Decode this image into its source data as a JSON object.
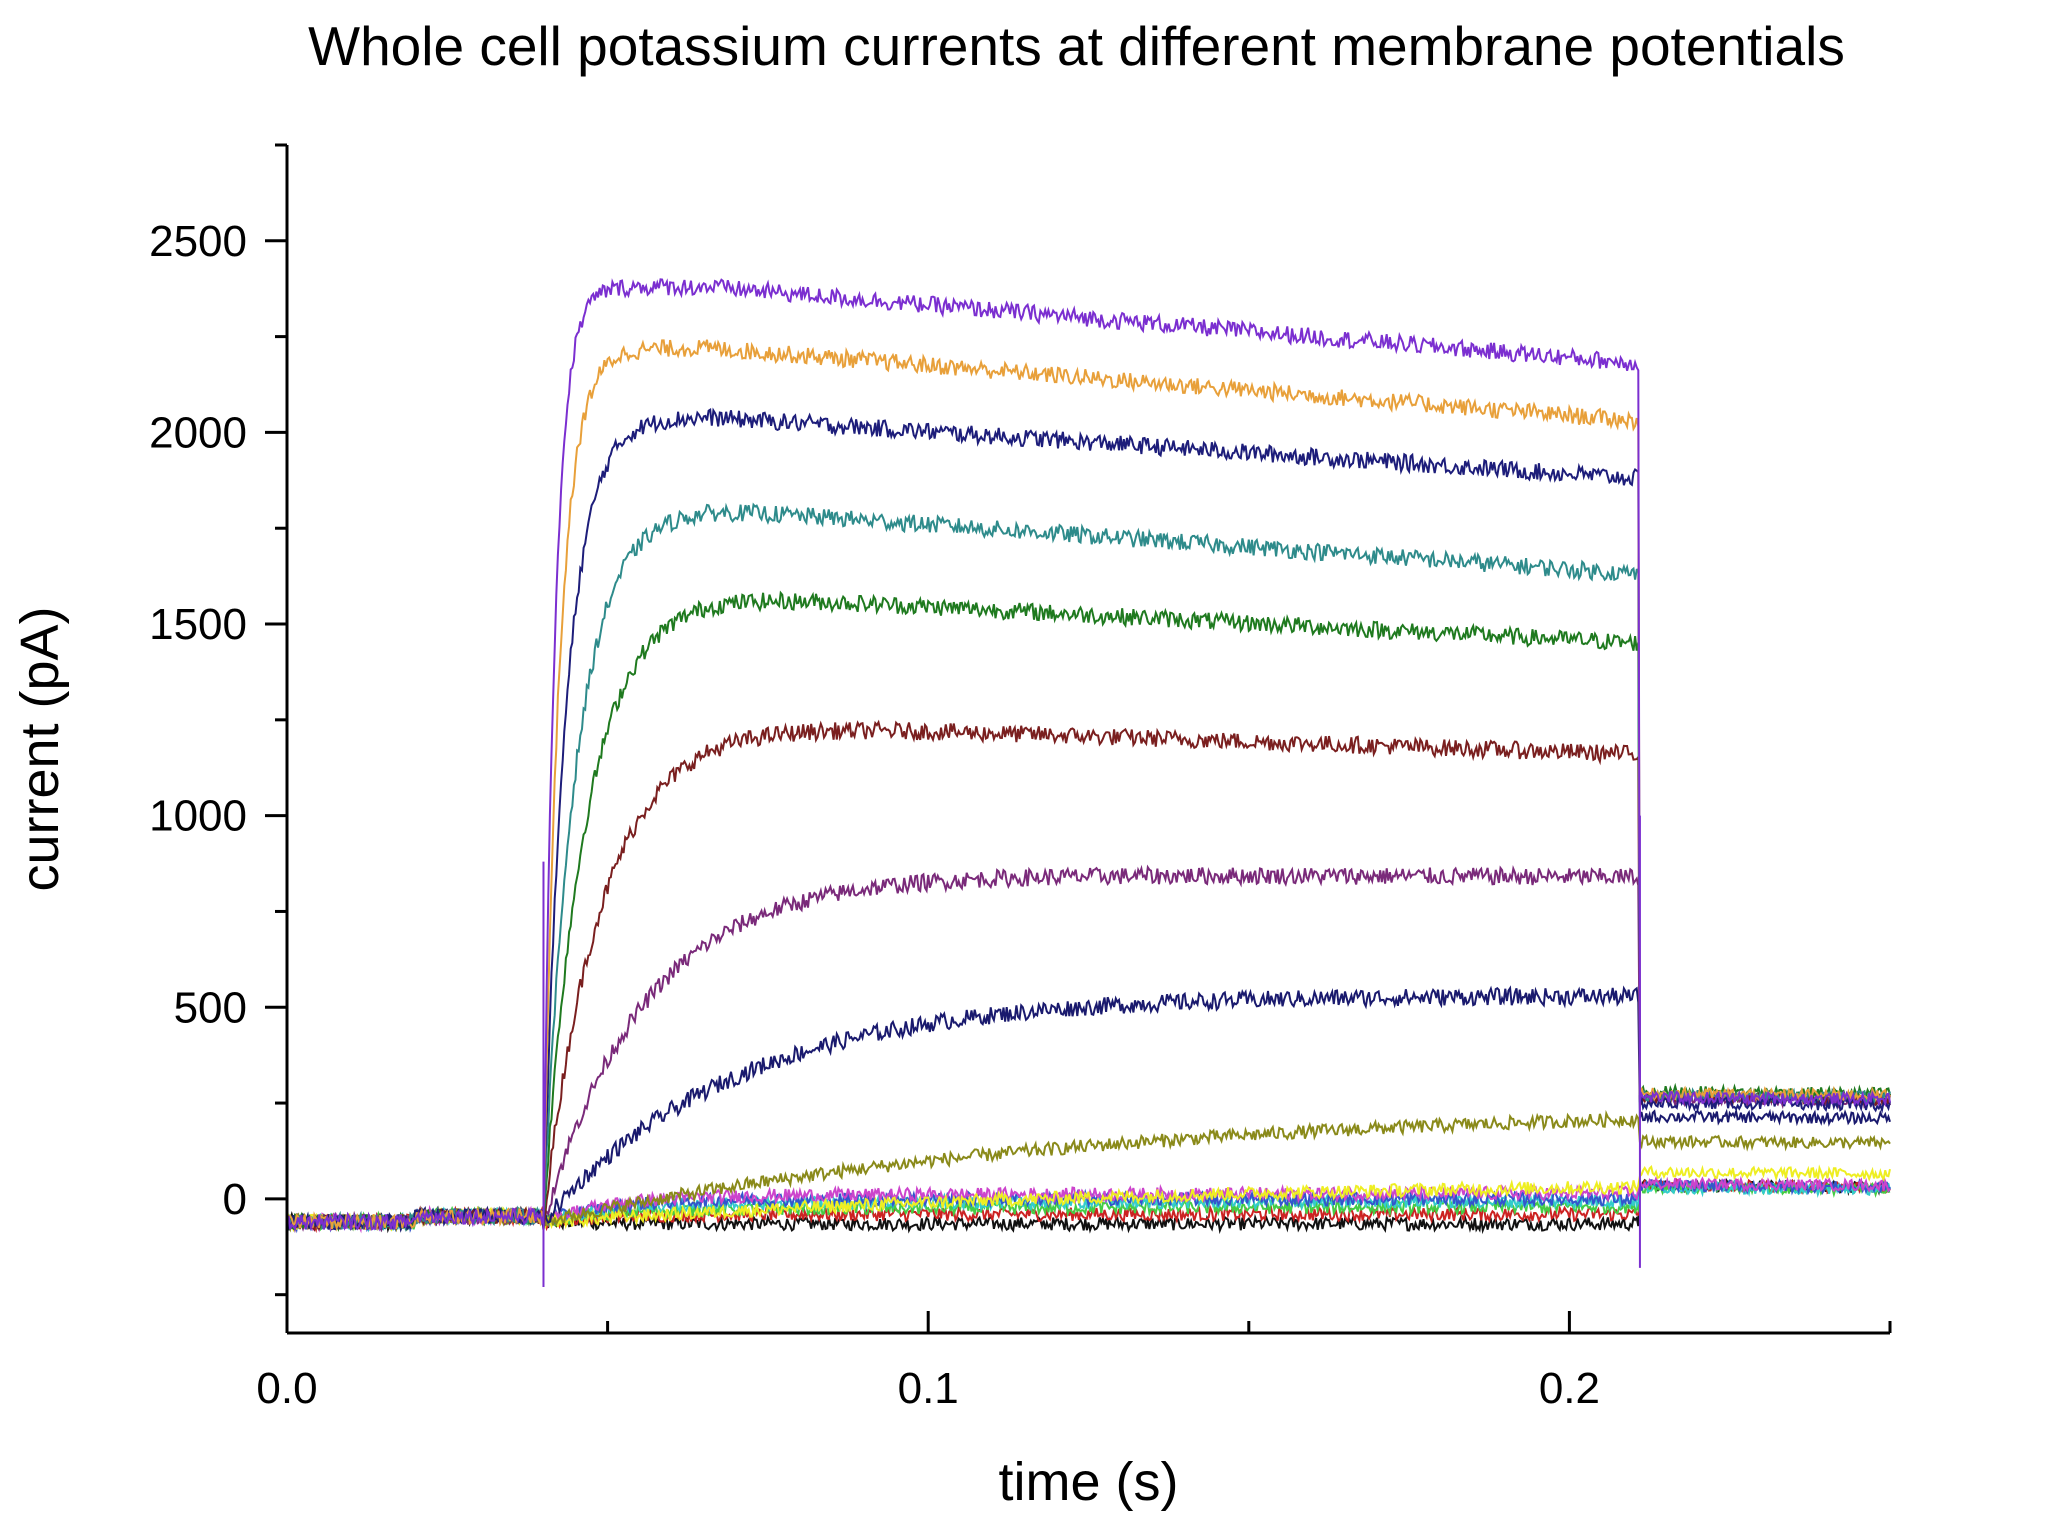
{
  "chart_data": {
    "type": "line",
    "title": "Whole cell potassium currents at different membrane potentials",
    "xlabel": "time (s)",
    "ylabel": "current (pA)",
    "xlim": [
      0,
      0.25
    ],
    "ylim": [
      -350,
      2750
    ],
    "x_ticks": [
      0.0,
      0.1,
      0.2
    ],
    "x_tick_labels": [
      "0.0",
      "0.1",
      "0.2"
    ],
    "x_minor_ticks": [
      0.05,
      0.15,
      0.25
    ],
    "y_ticks": [
      0,
      500,
      1000,
      1500,
      2000,
      2500
    ],
    "y_tick_labels": [
      "0",
      "500",
      "1000",
      "1500",
      "2000",
      "2500"
    ],
    "y_minor_ticks": [
      -250,
      250,
      750,
      1250,
      1750,
      2250,
      2750
    ],
    "grid": false,
    "legend": "none",
    "step_start_s": 0.04,
    "step_end_s": 0.211,
    "baseline_pA": -60,
    "series": [
      {
        "color": "#7b2fd0",
        "plateau_pA": 2380,
        "end_pA": 2180,
        "tail_pA": 265,
        "tau_s": 0.0018
      },
      {
        "color": "#e8a03a",
        "plateau_pA": 2220,
        "end_pA": 2030,
        "tail_pA": 275,
        "tau_s": 0.0025
      },
      {
        "color": "#1d1d7a",
        "plateau_pA": 2040,
        "end_pA": 1880,
        "tail_pA": 250,
        "tau_s": 0.0035
      },
      {
        "color": "#2e8b8b",
        "plateau_pA": 1800,
        "end_pA": 1630,
        "tail_pA": 270,
        "tau_s": 0.005
      },
      {
        "color": "#1f7a1f",
        "plateau_pA": 1575,
        "end_pA": 1450,
        "tail_pA": 280,
        "tau_s": 0.0065
      },
      {
        "color": "#7a1f1f",
        "plateau_pA": 1240,
        "end_pA": 1160,
        "tail_pA": 265,
        "tau_s": 0.009
      },
      {
        "color": "#7a2a7a",
        "plateau_pA": 850,
        "end_pA": 840,
        "tail_pA": 260,
        "tau_s": 0.016
      },
      {
        "color": "#1a1a6e",
        "plateau_pA": 540,
        "end_pA": 530,
        "tail_pA": 215,
        "tau_s": 0.03
      },
      {
        "color": "#8a8a1a",
        "plateau_pA": 270,
        "end_pA": 255,
        "tail_pA": 150,
        "tau_s": 0.09
      },
      {
        "color": "#eeee22",
        "plateau_pA": 70,
        "end_pA": 60,
        "tail_pA": 70,
        "tau_s": 0.12
      },
      {
        "color": "#cc44cc",
        "plateau_pA": 10,
        "end_pA": 15,
        "tail_pA": 40,
        "tau_s": 0.01
      },
      {
        "color": "#3355cc",
        "plateau_pA": 0,
        "end_pA": 0,
        "tail_pA": 35,
        "tau_s": 0.01
      },
      {
        "color": "#33cccc",
        "plateau_pA": -10,
        "end_pA": -5,
        "tail_pA": 30,
        "tau_s": 0.01
      },
      {
        "color": "#44cc44",
        "plateau_pA": -25,
        "end_pA": -20,
        "tail_pA": 30,
        "tau_s": 0.01
      },
      {
        "color": "#cc2222",
        "plateau_pA": -40,
        "end_pA": -40,
        "tail_pA": 35,
        "tau_s": 0.01
      },
      {
        "color": "#111111",
        "plateau_pA": -65,
        "end_pA": -65,
        "tail_pA": 35,
        "tau_s": 0.01
      }
    ]
  }
}
